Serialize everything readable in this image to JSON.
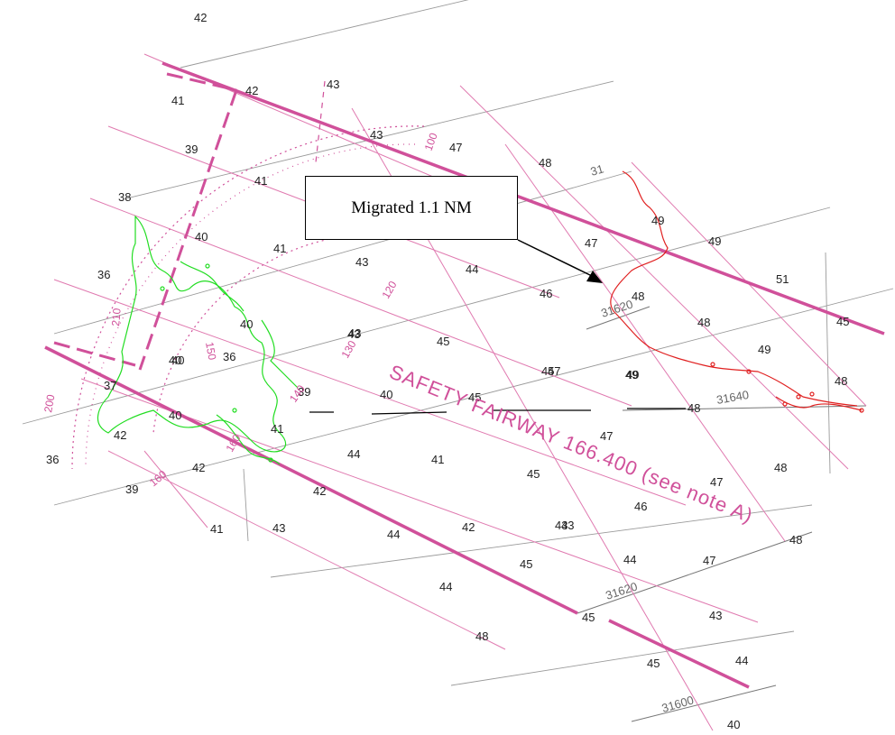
{
  "callout": {
    "text": "Migrated 1.1 NM"
  },
  "fairway_label": "SAFETY FAIRWAY 166.400 (see note A)",
  "colors": {
    "fairway_line": "#d0509a",
    "thin_line": "#e07ab0",
    "grid_line": "#8a8a8a",
    "green_contour": "#22dd22",
    "red_contour": "#e02020",
    "callout_arrow": "#000000"
  },
  "soundings": [
    "42",
    "42",
    "43",
    "41",
    "39",
    "43",
    "47",
    "48",
    "38",
    "41",
    "40",
    "41",
    "43",
    "44",
    "47",
    "49",
    "49",
    "36",
    "40",
    "43",
    "46",
    "48",
    "48",
    "51",
    "45",
    "40",
    "36",
    "43",
    "45",
    "49",
    "37",
    "40",
    "39",
    "40",
    "45",
    "47",
    "49",
    "48",
    "48",
    "40",
    "41",
    "42",
    "41",
    "47",
    "48",
    "36",
    "42",
    "45",
    "47",
    "48",
    "39",
    "42",
    "46",
    "41",
    "43",
    "44",
    "42",
    "43",
    "44",
    "47",
    "45",
    "44",
    "45",
    "43",
    "48",
    "45",
    "45",
    "49",
    "44",
    "43",
    "44",
    "40"
  ],
  "loran_labels": [
    "31620",
    "31640",
    "31620",
    "31600",
    "31"
  ],
  "bearing_labels": [
    "100",
    "120",
    "130",
    "140",
    "150",
    "160",
    "200",
    "210",
    "160"
  ],
  "icons": [
    "callout-arrow-icon"
  ]
}
